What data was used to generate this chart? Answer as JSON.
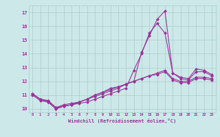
{
  "x": [
    0,
    1,
    2,
    3,
    4,
    5,
    6,
    7,
    8,
    9,
    10,
    11,
    12,
    13,
    14,
    15,
    16,
    17,
    18,
    19,
    20,
    21,
    22,
    23
  ],
  "line1": [
    11.1,
    10.7,
    10.6,
    10.1,
    10.2,
    10.3,
    10.4,
    10.5,
    10.7,
    10.9,
    11.1,
    11.3,
    11.5,
    12.8,
    14.0,
    15.5,
    16.2,
    15.5,
    12.6,
    12.2,
    12.1,
    12.7,
    12.7,
    12.4
  ],
  "line2": [
    11.1,
    10.7,
    10.6,
    10.1,
    10.3,
    10.4,
    10.5,
    10.7,
    10.9,
    11.1,
    11.3,
    11.5,
    11.8,
    12.0,
    14.1,
    15.3,
    16.5,
    17.1,
    12.6,
    12.3,
    12.2,
    12.9,
    12.8,
    12.5
  ],
  "line3": [
    11.1,
    10.7,
    10.5,
    10.0,
    10.2,
    10.3,
    10.5,
    10.7,
    11.0,
    11.2,
    11.5,
    11.6,
    11.8,
    12.0,
    12.2,
    12.4,
    12.6,
    12.8,
    12.2,
    12.0,
    12.0,
    12.3,
    12.3,
    12.2
  ],
  "line4": [
    11.0,
    10.6,
    10.5,
    10.0,
    10.2,
    10.3,
    10.5,
    10.7,
    11.0,
    11.2,
    11.4,
    11.6,
    11.8,
    12.0,
    12.2,
    12.4,
    12.5,
    12.7,
    12.1,
    11.9,
    11.9,
    12.2,
    12.2,
    12.1
  ],
  "color": "#993399",
  "bg_color": "#cce8e8",
  "grid_color": "#aacccc",
  "xlabel": "Windchill (Refroidissement éolien,°C)",
  "xlim": [
    -0.5,
    23.5
  ],
  "ylim": [
    9.75,
    17.5
  ],
  "yticks": [
    10,
    11,
    12,
    13,
    14,
    15,
    16,
    17
  ],
  "xticks": [
    0,
    1,
    2,
    3,
    4,
    5,
    6,
    7,
    8,
    9,
    10,
    11,
    12,
    13,
    14,
    15,
    16,
    17,
    18,
    19,
    20,
    21,
    22,
    23
  ],
  "marker": "D",
  "markersize": 2.0,
  "linewidth": 0.8
}
